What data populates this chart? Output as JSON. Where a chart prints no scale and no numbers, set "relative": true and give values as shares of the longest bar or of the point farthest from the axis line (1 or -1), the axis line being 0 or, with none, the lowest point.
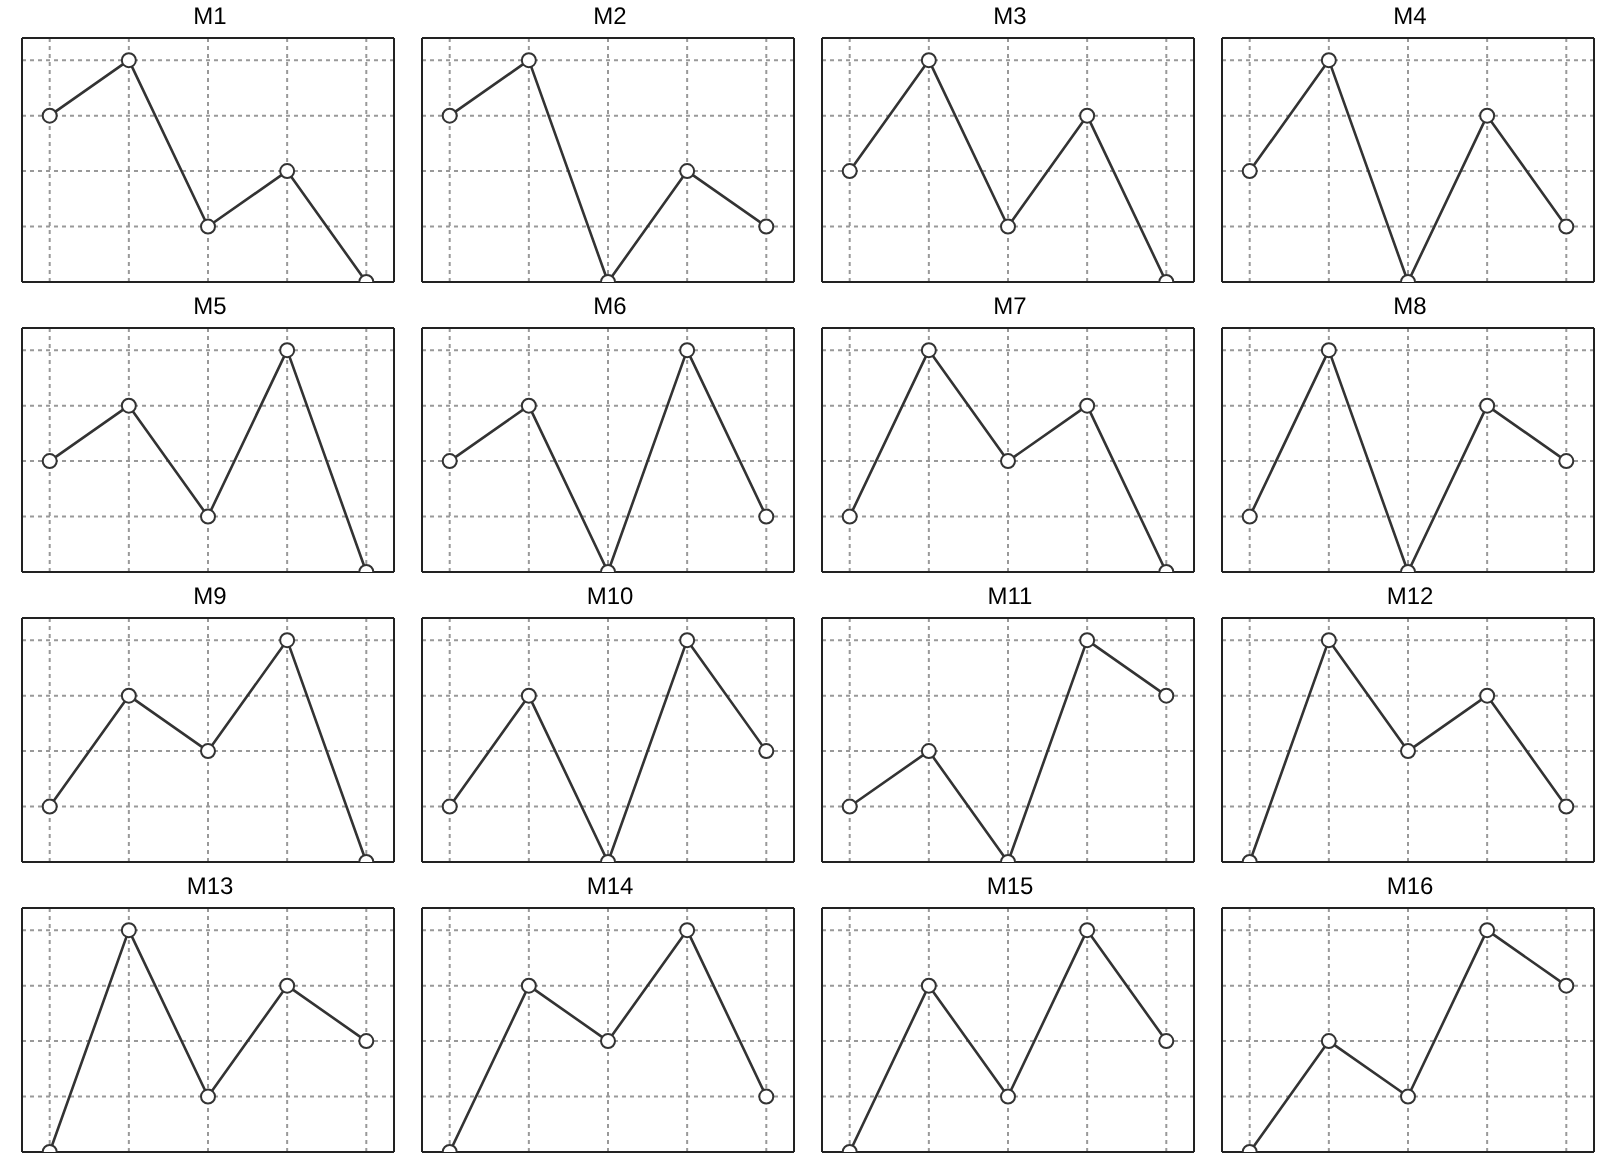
{
  "chart_data": [
    {
      "type": "line",
      "title": "M1",
      "categories": [
        null,
        null,
        null,
        null,
        null
      ],
      "values": [
        0.75,
        1,
        0.25,
        0.5,
        0
      ],
      "relative": true,
      "color": "#333333",
      "grid": true,
      "marker": "circle",
      "tick_labels": false
    },
    {
      "type": "line",
      "title": "M2",
      "categories": [
        null,
        null,
        null,
        null,
        null
      ],
      "values": [
        0.75,
        1,
        0,
        0.5,
        0.25
      ],
      "relative": true,
      "color": "#333333",
      "grid": true,
      "marker": "circle",
      "tick_labels": false
    },
    {
      "type": "line",
      "title": "M3",
      "categories": [
        null,
        null,
        null,
        null,
        null
      ],
      "values": [
        0.5,
        1,
        0.25,
        0.75,
        0
      ],
      "relative": true,
      "color": "#333333",
      "grid": true,
      "marker": "circle",
      "tick_labels": false
    },
    {
      "type": "line",
      "title": "M4",
      "categories": [
        null,
        null,
        null,
        null,
        null
      ],
      "values": [
        0.5,
        1,
        0,
        0.75,
        0.25
      ],
      "relative": true,
      "color": "#333333",
      "grid": true,
      "marker": "circle",
      "tick_labels": false
    },
    {
      "type": "line",
      "title": "M5",
      "categories": [
        null,
        null,
        null,
        null,
        null
      ],
      "values": [
        0.5,
        0.75,
        0.25,
        1,
        0
      ],
      "relative": true,
      "color": "#333333",
      "grid": true,
      "marker": "circle",
      "tick_labels": false
    },
    {
      "type": "line",
      "title": "M6",
      "categories": [
        null,
        null,
        null,
        null,
        null
      ],
      "values": [
        0.5,
        0.75,
        0,
        1,
        0.25
      ],
      "relative": true,
      "color": "#333333",
      "grid": true,
      "marker": "circle",
      "tick_labels": false
    },
    {
      "type": "line",
      "title": "M7",
      "categories": [
        null,
        null,
        null,
        null,
        null
      ],
      "values": [
        0.25,
        1,
        0.5,
        0.75,
        0
      ],
      "relative": true,
      "color": "#333333",
      "grid": true,
      "marker": "circle",
      "tick_labels": false
    },
    {
      "type": "line",
      "title": "M8",
      "categories": [
        null,
        null,
        null,
        null,
        null
      ],
      "values": [
        0.25,
        1,
        0,
        0.75,
        0.5
      ],
      "relative": true,
      "color": "#333333",
      "grid": true,
      "marker": "circle",
      "tick_labels": false
    },
    {
      "type": "line",
      "title": "M9",
      "categories": [
        null,
        null,
        null,
        null,
        null
      ],
      "values": [
        0.25,
        0.75,
        0.5,
        1,
        0
      ],
      "relative": true,
      "color": "#333333",
      "grid": true,
      "marker": "circle",
      "tick_labels": false
    },
    {
      "type": "line",
      "title": "M10",
      "categories": [
        null,
        null,
        null,
        null,
        null
      ],
      "values": [
        0.25,
        0.75,
        0,
        1,
        0.5
      ],
      "relative": true,
      "color": "#333333",
      "grid": true,
      "marker": "circle",
      "tick_labels": false
    },
    {
      "type": "line",
      "title": "M11",
      "categories": [
        null,
        null,
        null,
        null,
        null
      ],
      "values": [
        0.25,
        0.5,
        0,
        1,
        0.75
      ],
      "relative": true,
      "color": "#333333",
      "grid": true,
      "marker": "circle",
      "tick_labels": false
    },
    {
      "type": "line",
      "title": "M12",
      "categories": [
        null,
        null,
        null,
        null,
        null
      ],
      "values": [
        0,
        1,
        0.5,
        0.75,
        0.25
      ],
      "relative": true,
      "color": "#333333",
      "grid": true,
      "marker": "circle",
      "tick_labels": false
    },
    {
      "type": "line",
      "title": "M13",
      "categories": [
        null,
        null,
        null,
        null,
        null
      ],
      "values": [
        0,
        1,
        0.25,
        0.75,
        0.5
      ],
      "relative": true,
      "color": "#333333",
      "grid": true,
      "marker": "circle",
      "tick_labels": false
    },
    {
      "type": "line",
      "title": "M14",
      "categories": [
        null,
        null,
        null,
        null,
        null
      ],
      "values": [
        0,
        0.75,
        0.5,
        1,
        0.25
      ],
      "relative": true,
      "color": "#333333",
      "grid": true,
      "marker": "circle",
      "tick_labels": false
    },
    {
      "type": "line",
      "title": "M15",
      "categories": [
        null,
        null,
        null,
        null,
        null
      ],
      "values": [
        0,
        0.75,
        0.25,
        1,
        0.5
      ],
      "relative": true,
      "color": "#333333",
      "grid": true,
      "marker": "circle",
      "tick_labels": false
    },
    {
      "type": "line",
      "title": "M16",
      "categories": [
        null,
        null,
        null,
        null,
        null
      ],
      "values": [
        0,
        0.5,
        0.25,
        1,
        0.75
      ],
      "relative": true,
      "color": "#333333",
      "grid": true,
      "marker": "circle",
      "tick_labels": false
    }
  ]
}
